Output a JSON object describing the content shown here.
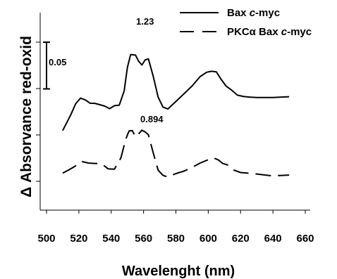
{
  "chart_data": {
    "type": "line",
    "xlabel": "Wavelenght (nm)",
    "ylabel": "Δ Absorvance red-oxid",
    "xlim": [
      500,
      660
    ],
    "x_ticks": [
      500,
      520,
      540,
      560,
      580,
      600,
      620,
      640,
      660
    ],
    "y_axis_ticks_count": 4,
    "scale_bar_label": "0.05",
    "scale_bar_value": 0.05,
    "legend_placement": "top-right",
    "series": [
      {
        "name": "Bax c-myc",
        "name_prefix": "Bax ",
        "name_em": "c",
        "name_suffix": "-myc",
        "line_style": "solid",
        "color": "#000000",
        "peak_label": "1.23",
        "x": [
          510,
          515,
          518,
          521,
          524,
          527,
          530,
          533,
          536,
          539,
          542,
          545,
          548,
          550,
          552,
          555,
          557,
          559,
          561,
          563,
          566,
          569,
          572,
          575,
          580,
          585,
          590,
          595,
          599,
          602,
          605,
          608,
          611,
          614,
          618,
          622,
          626,
          630,
          640,
          650
        ],
        "y": [
          0.017,
          0.051,
          0.075,
          0.085,
          0.082,
          0.076,
          0.074,
          0.072,
          0.07,
          0.063,
          0.07,
          0.072,
          0.1,
          0.15,
          0.178,
          0.175,
          0.163,
          0.156,
          0.165,
          0.168,
          0.132,
          0.087,
          0.067,
          0.064,
          0.078,
          0.095,
          0.112,
          0.13,
          0.14,
          0.143,
          0.14,
          0.125,
          0.112,
          0.103,
          0.092,
          0.09,
          0.087,
          0.087,
          0.088,
          0.088
        ]
      },
      {
        "name": "PKCα Bax c-myc",
        "name_prefix": "PKCα Bax ",
        "name_em": "c",
        "name_suffix": "-myc",
        "line_style": "dashed",
        "color": "#000000",
        "peak_label": "0.894",
        "x": [
          510,
          514,
          518,
          522,
          526,
          530,
          534,
          538,
          542,
          546,
          549,
          551,
          553,
          555,
          557,
          559,
          561,
          563,
          566,
          569,
          572,
          575,
          580,
          585,
          590,
          595,
          600,
          603,
          606,
          609,
          612,
          616,
          620,
          625,
          630,
          640,
          650
        ],
        "y": [
          -0.072,
          -0.064,
          -0.055,
          -0.048,
          -0.05,
          -0.05,
          -0.052,
          -0.062,
          -0.062,
          -0.04,
          0.0,
          0.018,
          0.017,
          0.005,
          0.012,
          0.018,
          0.015,
          0.01,
          -0.03,
          -0.065,
          -0.075,
          -0.08,
          -0.072,
          -0.066,
          -0.06,
          -0.05,
          -0.042,
          -0.04,
          -0.043,
          -0.05,
          -0.055,
          -0.065,
          -0.069,
          -0.072,
          -0.073,
          -0.076,
          -0.076
        ]
      }
    ]
  }
}
